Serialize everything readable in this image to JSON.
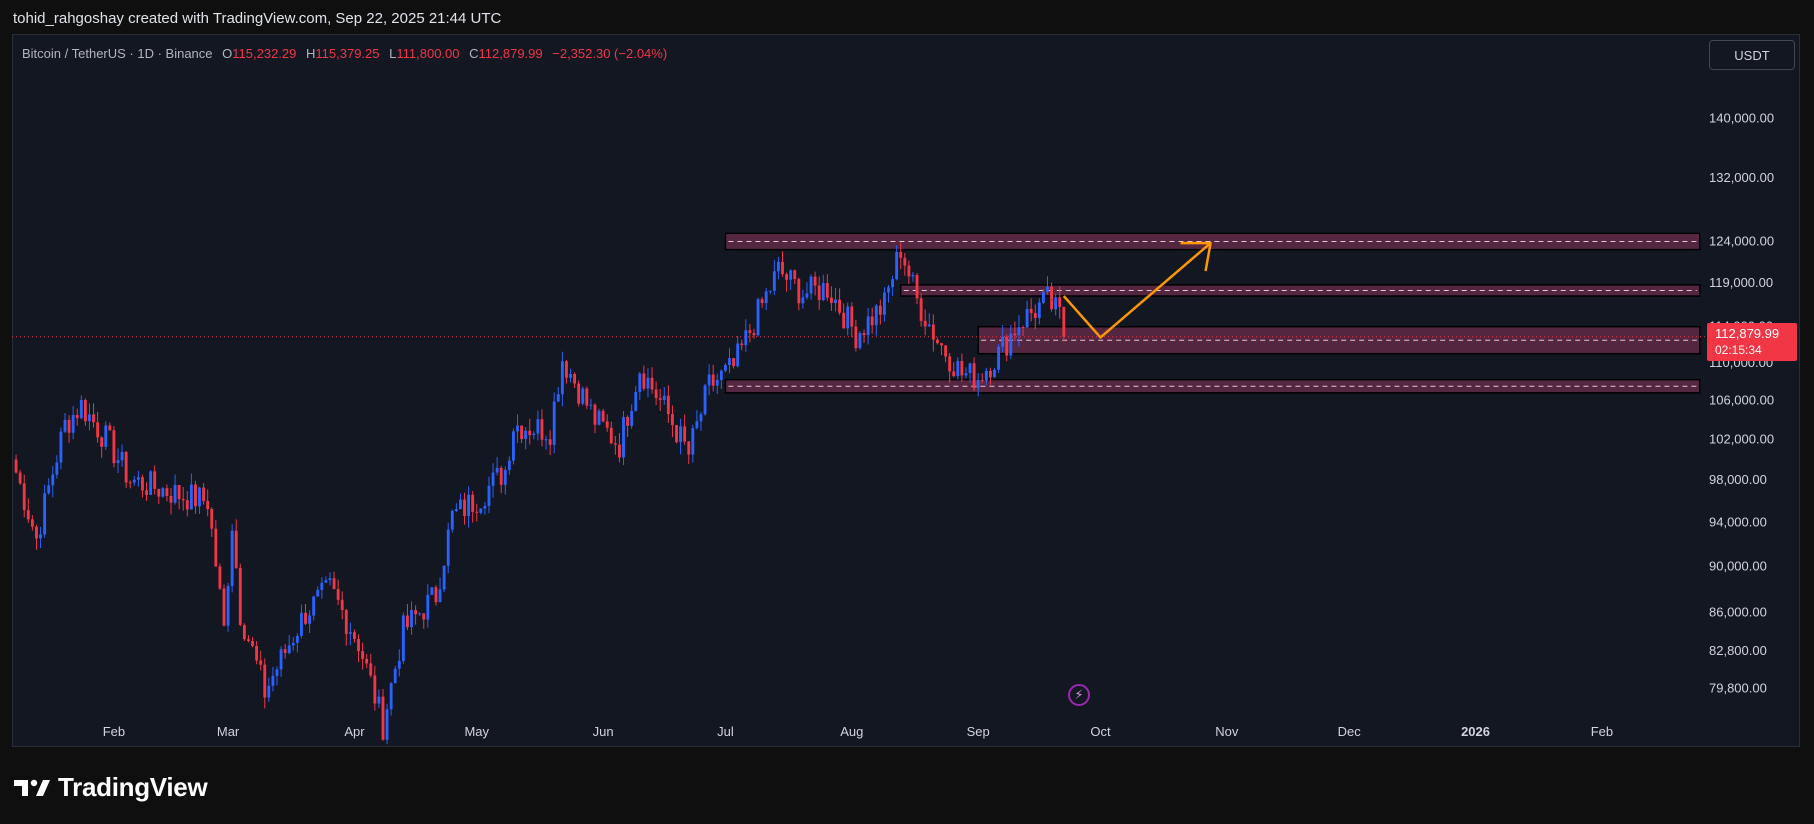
{
  "caption": "tohid_rahgoshay created with TradingView.com, Sep 22, 2025 21:44 UTC",
  "legend": {
    "symbol": "Bitcoin / TetherUS · 1D · Binance",
    "o_label": "O",
    "o_value": "115,232.29",
    "h_label": "H",
    "h_value": "115,379.25",
    "l_label": "L",
    "l_value": "111,800.00",
    "c_label": "C",
    "c_value": "112,879.99",
    "change": "−2,352.30 (−2.04%)"
  },
  "currency": "USDT",
  "last_price": "112,879.99",
  "countdown": "02:15:34",
  "brand": "TradingView",
  "colors": {
    "background": "#131722",
    "up": "#2962ff",
    "down": "#f23645",
    "zone_fill": "#6b2c4b",
    "zone_border": "#000000",
    "projection": "#ff9800",
    "axis_text": "#d1d4dc"
  },
  "icons": {
    "flash": "lightning-icon",
    "logo": "tradingview-logo-icon"
  },
  "chart_data": {
    "type": "candlestick",
    "title": "Bitcoin / TetherUS · 1D · Binance",
    "y_axis": {
      "scale": "log",
      "range": [
        77500,
        152000
      ],
      "ticks": [
        "140,000.00",
        "132,000.00",
        "124,000.00",
        "119,000.00",
        "114,000.00",
        "110,000.00",
        "106,000.00",
        "102,000.00",
        "98,000.00",
        "94,000.00",
        "90,000.00",
        "86,000.00",
        "82,800.00",
        "79,800.00"
      ],
      "tick_values": [
        140000,
        132000,
        124000,
        119000,
        114000,
        110000,
        106000,
        102000,
        98000,
        94000,
        90000,
        86000,
        82800,
        79800
      ]
    },
    "x_axis": {
      "range": [
        "2025-01-07",
        "2026-02-28"
      ],
      "ticks": [
        {
          "label": "Feb",
          "date": "2025-02-01",
          "bold": false
        },
        {
          "label": "Mar",
          "date": "2025-03-01",
          "bold": false
        },
        {
          "label": "Apr",
          "date": "2025-04-01",
          "bold": false
        },
        {
          "label": "May",
          "date": "2025-05-01",
          "bold": false
        },
        {
          "label": "Jun",
          "date": "2025-06-01",
          "bold": false
        },
        {
          "label": "Jul",
          "date": "2025-07-01",
          "bold": false
        },
        {
          "label": "Aug",
          "date": "2025-08-01",
          "bold": false
        },
        {
          "label": "Sep",
          "date": "2025-09-01",
          "bold": false
        },
        {
          "label": "Oct",
          "date": "2025-10-01",
          "bold": false
        },
        {
          "label": "Nov",
          "date": "2025-11-01",
          "bold": false
        },
        {
          "label": "Dec",
          "date": "2025-12-01",
          "bold": false
        },
        {
          "label": "2026",
          "date": "2026-01-01",
          "bold": true
        },
        {
          "label": "Feb",
          "date": "2026-02-01",
          "bold": false
        }
      ]
    },
    "price_path": {
      "start": "2025-01-07",
      "points": [
        [
          "2025-01-07",
          100000
        ],
        [
          "2025-01-13",
          92500
        ],
        [
          "2025-01-20",
          103500
        ],
        [
          "2025-01-24",
          105500
        ],
        [
          "2025-01-31",
          101500
        ],
        [
          "2025-02-05",
          98000
        ],
        [
          "2025-02-18",
          96500
        ],
        [
          "2025-02-24",
          96000
        ],
        [
          "2025-02-28",
          84500
        ],
        [
          "2025-03-02",
          94000
        ],
        [
          "2025-03-04",
          86000
        ],
        [
          "2025-03-10",
          79500
        ],
        [
          "2025-03-20",
          86000
        ],
        [
          "2025-03-26",
          88000
        ],
        [
          "2025-04-02",
          83500
        ],
        [
          "2025-04-08",
          77000
        ],
        [
          "2025-04-13",
          84500
        ],
        [
          "2025-04-21",
          87500
        ],
        [
          "2025-04-25",
          94500
        ],
        [
          "2025-05-02",
          96500
        ],
        [
          "2025-05-08",
          99000
        ],
        [
          "2025-05-10",
          103500
        ],
        [
          "2025-05-19",
          103000
        ],
        [
          "2025-05-22",
          110500
        ],
        [
          "2025-05-30",
          104000
        ],
        [
          "2025-06-05",
          101500
        ],
        [
          "2025-06-10",
          109500
        ],
        [
          "2025-06-17",
          104500
        ],
        [
          "2025-06-22",
          100500
        ],
        [
          "2025-06-27",
          107500
        ],
        [
          "2025-07-03",
          109500
        ],
        [
          "2025-07-11",
          117500
        ],
        [
          "2025-07-14",
          120500
        ],
        [
          "2025-07-20",
          117800
        ],
        [
          "2025-07-26",
          118500
        ],
        [
          "2025-08-02",
          113200
        ],
        [
          "2025-08-09",
          116500
        ],
        [
          "2025-08-13",
          123200
        ],
        [
          "2025-08-17",
          117000
        ],
        [
          "2025-08-22",
          112500
        ],
        [
          "2025-08-28",
          108800
        ],
        [
          "2025-09-01",
          108500
        ],
        [
          "2025-09-06",
          111000
        ],
        [
          "2025-09-11",
          114500
        ],
        [
          "2025-09-18",
          117000
        ],
        [
          "2025-09-21",
          115200
        ],
        [
          "2025-09-22",
          112880
        ]
      ]
    },
    "zones": [
      {
        "from": "2025-07-01",
        "to": "2026-02-25",
        "low": 123000,
        "high": 125000
      },
      {
        "from": "2025-08-13",
        "to": "2026-02-25",
        "low": 117500,
        "high": 118800
      },
      {
        "from": "2025-09-01",
        "to": "2026-02-25",
        "low": 111000,
        "high": 114000
      },
      {
        "from": "2025-07-01",
        "to": "2026-02-25",
        "low": 106800,
        "high": 108200
      }
    ],
    "projection": [
      [
        "2025-09-22",
        117500
      ],
      [
        "2025-10-01",
        112800
      ],
      [
        "2025-10-28",
        123800
      ]
    ],
    "last_price": 112879.99
  }
}
